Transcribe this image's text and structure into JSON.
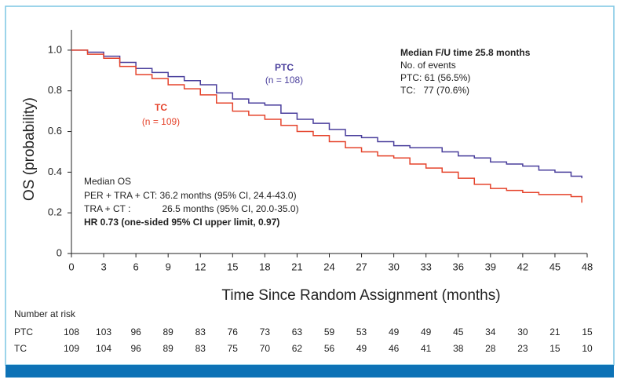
{
  "chart_data": {
    "type": "line",
    "x_label": "Time Since Random Assignment (months)",
    "y_label": "OS (probability)",
    "xlim": [
      0,
      48
    ],
    "xticks": [
      0,
      3,
      6,
      9,
      12,
      15,
      18,
      21,
      24,
      27,
      30,
      33,
      36,
      39,
      42,
      45,
      48
    ],
    "ylim": [
      0,
      1.1
    ],
    "yticks": [
      0,
      0.2,
      0.4,
      0.6,
      0.8,
      {
        "value": 1,
        "label": "1.0"
      }
    ],
    "series": [
      {
        "name": "PTC",
        "color": "#4a3f9c",
        "x": [
          0,
          1.5,
          3,
          4.5,
          6,
          7.5,
          9,
          10.5,
          12,
          13.5,
          15,
          16.5,
          18,
          19.5,
          21,
          22.5,
          24,
          25.5,
          27,
          28.5,
          30,
          31.5,
          33,
          34.5,
          36,
          37.5,
          39,
          40.5,
          42,
          43.5,
          45,
          46.5,
          47.5
        ],
        "values": [
          1.0,
          0.99,
          0.97,
          0.94,
          0.91,
          0.89,
          0.87,
          0.85,
          0.83,
          0.79,
          0.76,
          0.74,
          0.73,
          0.69,
          0.66,
          0.64,
          0.61,
          0.58,
          0.57,
          0.55,
          0.53,
          0.52,
          0.52,
          0.5,
          0.48,
          0.47,
          0.45,
          0.44,
          0.43,
          0.41,
          0.4,
          0.38,
          0.37
        ]
      },
      {
        "name": "TC",
        "color": "#e5432b",
        "x": [
          0,
          1.5,
          3,
          4.5,
          6,
          7.5,
          9,
          10.5,
          12,
          13.5,
          15,
          16.5,
          18,
          19.5,
          21,
          22.5,
          24,
          25.5,
          27,
          28.5,
          30,
          31.5,
          33,
          34.5,
          36,
          37.5,
          39,
          40.5,
          42,
          43.5,
          45,
          46.5,
          47.5
        ],
        "values": [
          1.0,
          0.98,
          0.96,
          0.92,
          0.88,
          0.86,
          0.83,
          0.81,
          0.78,
          0.74,
          0.7,
          0.68,
          0.66,
          0.63,
          0.6,
          0.58,
          0.55,
          0.52,
          0.5,
          0.48,
          0.47,
          0.44,
          0.42,
          0.4,
          0.37,
          0.34,
          0.32,
          0.31,
          0.3,
          0.29,
          0.29,
          0.28,
          0.25
        ]
      }
    ],
    "annotations": {
      "ptc_n": "(n = 108)",
      "tc_n": "(n = 109)",
      "box": [
        "Median F/U time 25.8 months",
        "No. of events",
        "PTC: 61 (56.5%)",
        "TC:   77 (70.6%)"
      ],
      "median": [
        "Median OS",
        "PER + TRA + CT: 36.2 months (95% CI, 24.4-43.0)",
        "TRA + CT :            26.5 months (95% CI, 20.0-35.0)",
        "HR 0.73 (one-sided 95% CI upper limit, 0.97)"
      ]
    },
    "risk_table": {
      "title": "Number at risk",
      "rows": [
        {
          "name": "PTC",
          "values": [
            108,
            103,
            96,
            89,
            83,
            76,
            73,
            63,
            59,
            53,
            49,
            49,
            45,
            34,
            30,
            21,
            15
          ]
        },
        {
          "name": "TC",
          "values": [
            109,
            104,
            96,
            89,
            83,
            75,
            70,
            62,
            56,
            49,
            46,
            41,
            38,
            28,
            23,
            15,
            10
          ]
        }
      ]
    }
  }
}
